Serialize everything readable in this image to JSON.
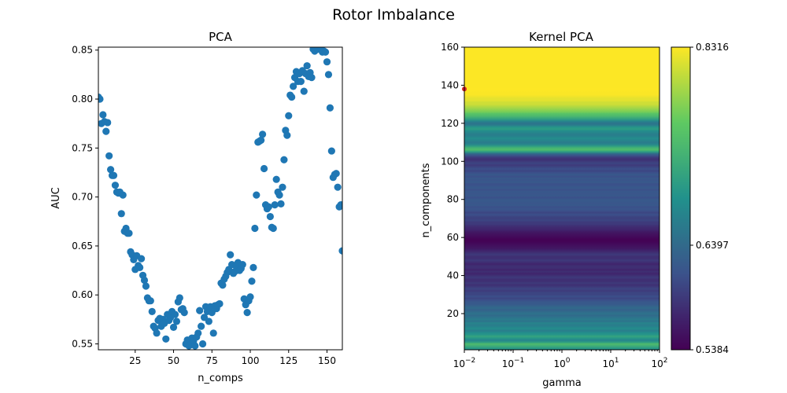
{
  "figure": {
    "title": "Rotor Imbalance"
  },
  "chart_data": [
    {
      "type": "scatter",
      "title": "PCA",
      "xlabel": "n_comps",
      "ylabel": "AUC",
      "xlim": [
        1,
        160
      ],
      "ylim": [
        0.544,
        0.853
      ],
      "xticks": [
        25,
        50,
        75,
        100,
        125,
        150
      ],
      "yticks": [
        0.55,
        0.6,
        0.65,
        0.7,
        0.75,
        0.8,
        0.85
      ],
      "ytick_labels": [
        "0.55",
        "0.60",
        "0.65",
        "0.70",
        "0.75",
        "0.80",
        "0.85"
      ],
      "marker_color": "#1f77b4",
      "points": [
        [
          1,
          0.802
        ],
        [
          2,
          0.8
        ],
        [
          3,
          0.775
        ],
        [
          4,
          0.784
        ],
        [
          5,
          0.777
        ],
        [
          6,
          0.767
        ],
        [
          7,
          0.776
        ],
        [
          8,
          0.742
        ],
        [
          9,
          0.728
        ],
        [
          10,
          0.722
        ],
        [
          11,
          0.722
        ],
        [
          12,
          0.712
        ],
        [
          13,
          0.705
        ],
        [
          14,
          0.704
        ],
        [
          15,
          0.705
        ],
        [
          16,
          0.683
        ],
        [
          17,
          0.702
        ],
        [
          18,
          0.665
        ],
        [
          19,
          0.668
        ],
        [
          20,
          0.663
        ],
        [
          21,
          0.663
        ],
        [
          22,
          0.644
        ],
        [
          23,
          0.641
        ],
        [
          24,
          0.636
        ],
        [
          25,
          0.626
        ],
        [
          26,
          0.64
        ],
        [
          27,
          0.63
        ],
        [
          28,
          0.628
        ],
        [
          29,
          0.637
        ],
        [
          30,
          0.62
        ],
        [
          31,
          0.615
        ],
        [
          32,
          0.609
        ],
        [
          33,
          0.597
        ],
        [
          34,
          0.594
        ],
        [
          35,
          0.594
        ],
        [
          36,
          0.583
        ],
        [
          37,
          0.568
        ],
        [
          38,
          0.566
        ],
        [
          39,
          0.561
        ],
        [
          40,
          0.574
        ],
        [
          41,
          0.576
        ],
        [
          42,
          0.568
        ],
        [
          43,
          0.575
        ],
        [
          44,
          0.571
        ],
        [
          45,
          0.555
        ],
        [
          46,
          0.58
        ],
        [
          47,
          0.574
        ],
        [
          48,
          0.577
        ],
        [
          49,
          0.583
        ],
        [
          50,
          0.567
        ],
        [
          51,
          0.58
        ],
        [
          52,
          0.573
        ],
        [
          53,
          0.593
        ],
        [
          54,
          0.597
        ],
        [
          55,
          0.585
        ],
        [
          56,
          0.586
        ],
        [
          57,
          0.582
        ],
        [
          58,
          0.55
        ],
        [
          59,
          0.554
        ],
        [
          60,
          0.548
        ],
        [
          61,
          0.549
        ],
        [
          62,
          0.556
        ],
        [
          63,
          0.553
        ],
        [
          64,
          0.548
        ],
        [
          65,
          0.557
        ],
        [
          66,
          0.561
        ],
        [
          67,
          0.584
        ],
        [
          68,
          0.568
        ],
        [
          69,
          0.55
        ],
        [
          70,
          0.577
        ],
        [
          71,
          0.588
        ],
        [
          72,
          0.583
        ],
        [
          73,
          0.573
        ],
        [
          74,
          0.588
        ],
        [
          75,
          0.582
        ],
        [
          76,
          0.561
        ],
        [
          77,
          0.589
        ],
        [
          78,
          0.586
        ],
        [
          79,
          0.59
        ],
        [
          80,
          0.591
        ],
        [
          81,
          0.612
        ],
        [
          82,
          0.61
        ],
        [
          83,
          0.616
        ],
        [
          84,
          0.619
        ],
        [
          85,
          0.623
        ],
        [
          86,
          0.626
        ],
        [
          87,
          0.641
        ],
        [
          88,
          0.631
        ],
        [
          89,
          0.622
        ],
        [
          90,
          0.624
        ],
        [
          91,
          0.629
        ],
        [
          92,
          0.633
        ],
        [
          93,
          0.625
        ],
        [
          94,
          0.627
        ],
        [
          95,
          0.631
        ],
        [
          96,
          0.596
        ],
        [
          97,
          0.59
        ],
        [
          98,
          0.582
        ],
        [
          99,
          0.594
        ],
        [
          100,
          0.598
        ],
        [
          101,
          0.614
        ],
        [
          102,
          0.628
        ],
        [
          103,
          0.668
        ],
        [
          104,
          0.702
        ],
        [
          105,
          0.756
        ],
        [
          106,
          0.757
        ],
        [
          107,
          0.758
        ],
        [
          108,
          0.764
        ],
        [
          109,
          0.729
        ],
        [
          110,
          0.692
        ],
        [
          111,
          0.688
        ],
        [
          112,
          0.69
        ],
        [
          113,
          0.68
        ],
        [
          114,
          0.669
        ],
        [
          115,
          0.668
        ],
        [
          116,
          0.692
        ],
        [
          117,
          0.718
        ],
        [
          118,
          0.705
        ],
        [
          119,
          0.702
        ],
        [
          120,
          0.693
        ],
        [
          121,
          0.71
        ],
        [
          122,
          0.738
        ],
        [
          123,
          0.768
        ],
        [
          124,
          0.763
        ],
        [
          125,
          0.783
        ],
        [
          126,
          0.804
        ],
        [
          127,
          0.802
        ],
        [
          128,
          0.813
        ],
        [
          129,
          0.822
        ],
        [
          130,
          0.828
        ],
        [
          131,
          0.818
        ],
        [
          132,
          0.826
        ],
        [
          133,
          0.818
        ],
        [
          134,
          0.829
        ],
        [
          135,
          0.808
        ],
        [
          136,
          0.826
        ],
        [
          137,
          0.834
        ],
        [
          138,
          0.823
        ],
        [
          139,
          0.827
        ],
        [
          140,
          0.822
        ],
        [
          141,
          0.851
        ],
        [
          142,
          0.849
        ],
        [
          143,
          0.852
        ],
        [
          144,
          0.851
        ],
        [
          145,
          0.853
        ],
        [
          146,
          0.852
        ],
        [
          147,
          0.848
        ],
        [
          148,
          0.849
        ],
        [
          149,
          0.848
        ],
        [
          150,
          0.838
        ],
        [
          151,
          0.825
        ],
        [
          152,
          0.791
        ],
        [
          153,
          0.747
        ],
        [
          154,
          0.72
        ],
        [
          155,
          0.723
        ],
        [
          156,
          0.724
        ],
        [
          157,
          0.71
        ],
        [
          158,
          0.69
        ],
        [
          159,
          0.692
        ],
        [
          160,
          0.645
        ]
      ]
    },
    {
      "type": "heatmap",
      "title": "Kernel PCA",
      "xlabel": "gamma",
      "ylabel": "n_components",
      "xscale": "log",
      "xlim": [
        0.01,
        100
      ],
      "ylim": [
        1,
        160
      ],
      "xticks": [
        0.01,
        0.1,
        1,
        10,
        100
      ],
      "xtick_labels": [
        {
          "base": "10",
          "exp": "−2"
        },
        {
          "base": "10",
          "exp": "−1"
        },
        {
          "base": "10",
          "exp": "0"
        },
        {
          "base": "10",
          "exp": "1"
        },
        {
          "base": "10",
          "exp": "2"
        }
      ],
      "yticks": [
        20,
        40,
        60,
        80,
        100,
        120,
        140,
        160
      ],
      "colormap": "viridis",
      "colorbar": {
        "min": 0.5384,
        "max": 0.8316,
        "ticks": [
          0.5384,
          0.6397,
          0.8316
        ],
        "tick_labels": [
          "0.5384",
          "0.6397",
          "0.8316"
        ]
      },
      "marker": {
        "n_components": 138,
        "gamma": 0.01,
        "color": "#d62728"
      },
      "row_values_by_n_components": [
        [
          1,
          0.68
        ],
        [
          2,
          0.7
        ],
        [
          3,
          0.72
        ],
        [
          4,
          0.74
        ],
        [
          5,
          0.7
        ],
        [
          6,
          0.67
        ],
        [
          7,
          0.69
        ],
        [
          8,
          0.71
        ],
        [
          9,
          0.69
        ],
        [
          10,
          0.68
        ],
        [
          11,
          0.66
        ],
        [
          12,
          0.68
        ],
        [
          13,
          0.67
        ],
        [
          14,
          0.66
        ],
        [
          15,
          0.67
        ],
        [
          16,
          0.65
        ],
        [
          17,
          0.66
        ],
        [
          18,
          0.65
        ],
        [
          19,
          0.64
        ],
        [
          20,
          0.65
        ],
        [
          21,
          0.64
        ],
        [
          22,
          0.63
        ],
        [
          23,
          0.64
        ],
        [
          24,
          0.63
        ],
        [
          25,
          0.62
        ],
        [
          26,
          0.62
        ],
        [
          27,
          0.61
        ],
        [
          28,
          0.6
        ],
        [
          29,
          0.61
        ],
        [
          30,
          0.6
        ],
        [
          31,
          0.6
        ],
        [
          32,
          0.59
        ],
        [
          33,
          0.6
        ],
        [
          34,
          0.59
        ],
        [
          35,
          0.58
        ],
        [
          36,
          0.59
        ],
        [
          37,
          0.58
        ],
        [
          38,
          0.58
        ],
        [
          39,
          0.59
        ],
        [
          40,
          0.58
        ],
        [
          41,
          0.57
        ],
        [
          42,
          0.58
        ],
        [
          43,
          0.57
        ],
        [
          44,
          0.58
        ],
        [
          45,
          0.58
        ],
        [
          46,
          0.57
        ],
        [
          47,
          0.58
        ],
        [
          48,
          0.59
        ],
        [
          49,
          0.58
        ],
        [
          50,
          0.58
        ],
        [
          51,
          0.59
        ],
        [
          52,
          0.58
        ],
        [
          53,
          0.57
        ],
        [
          54,
          0.56
        ],
        [
          55,
          0.555
        ],
        [
          56,
          0.55
        ],
        [
          57,
          0.545
        ],
        [
          58,
          0.54
        ],
        [
          59,
          0.54
        ],
        [
          60,
          0.545
        ],
        [
          61,
          0.55
        ],
        [
          62,
          0.555
        ],
        [
          63,
          0.56
        ],
        [
          64,
          0.57
        ],
        [
          65,
          0.575
        ],
        [
          66,
          0.58
        ],
        [
          67,
          0.59
        ],
        [
          68,
          0.59
        ],
        [
          69,
          0.6
        ],
        [
          70,
          0.595
        ],
        [
          71,
          0.6
        ],
        [
          72,
          0.61
        ],
        [
          73,
          0.6
        ],
        [
          74,
          0.61
        ],
        [
          75,
          0.615
        ],
        [
          76,
          0.61
        ],
        [
          77,
          0.62
        ],
        [
          78,
          0.615
        ],
        [
          79,
          0.62
        ],
        [
          80,
          0.62
        ],
        [
          81,
          0.61
        ],
        [
          82,
          0.62
        ],
        [
          83,
          0.615
        ],
        [
          84,
          0.62
        ],
        [
          85,
          0.61
        ],
        [
          86,
          0.62
        ],
        [
          87,
          0.615
        ],
        [
          88,
          0.61
        ],
        [
          89,
          0.62
        ],
        [
          90,
          0.615
        ],
        [
          91,
          0.62
        ],
        [
          92,
          0.61
        ],
        [
          93,
          0.62
        ],
        [
          94,
          0.61
        ],
        [
          95,
          0.6
        ],
        [
          96,
          0.61
        ],
        [
          97,
          0.6
        ],
        [
          98,
          0.59
        ],
        [
          99,
          0.6
        ],
        [
          100,
          0.59
        ],
        [
          101,
          0.58
        ],
        [
          102,
          0.59
        ],
        [
          103,
          0.61
        ],
        [
          104,
          0.64
        ],
        [
          105,
          0.7
        ],
        [
          106,
          0.74
        ],
        [
          107,
          0.73
        ],
        [
          108,
          0.7
        ],
        [
          109,
          0.67
        ],
        [
          110,
          0.66
        ],
        [
          111,
          0.67
        ],
        [
          112,
          0.68
        ],
        [
          113,
          0.67
        ],
        [
          114,
          0.66
        ],
        [
          115,
          0.67
        ],
        [
          116,
          0.68
        ],
        [
          117,
          0.7
        ],
        [
          118,
          0.69
        ],
        [
          119,
          0.66
        ],
        [
          120,
          0.65
        ],
        [
          121,
          0.67
        ],
        [
          122,
          0.7
        ],
        [
          123,
          0.72
        ],
        [
          124,
          0.74
        ],
        [
          125,
          0.75
        ],
        [
          126,
          0.77
        ],
        [
          127,
          0.78
        ],
        [
          128,
          0.79
        ],
        [
          129,
          0.8
        ],
        [
          130,
          0.81
        ],
        [
          131,
          0.81
        ],
        [
          132,
          0.82
        ],
        [
          133,
          0.82
        ],
        [
          134,
          0.825
        ],
        [
          135,
          0.83
        ],
        [
          136,
          0.83
        ],
        [
          137,
          0.831
        ],
        [
          138,
          0.8316
        ],
        [
          139,
          0.831
        ],
        [
          140,
          0.831
        ],
        [
          141,
          0.831
        ],
        [
          142,
          0.831
        ],
        [
          143,
          0.831
        ],
        [
          144,
          0.831
        ],
        [
          145,
          0.831
        ],
        [
          146,
          0.831
        ],
        [
          147,
          0.831
        ],
        [
          148,
          0.831
        ],
        [
          149,
          0.831
        ],
        [
          150,
          0.831
        ],
        [
          151,
          0.831
        ],
        [
          152,
          0.831
        ],
        [
          153,
          0.831
        ],
        [
          154,
          0.831
        ],
        [
          155,
          0.831
        ],
        [
          156,
          0.831
        ],
        [
          157,
          0.831
        ],
        [
          158,
          0.831
        ],
        [
          159,
          0.831
        ],
        [
          160,
          0.831
        ]
      ]
    }
  ]
}
